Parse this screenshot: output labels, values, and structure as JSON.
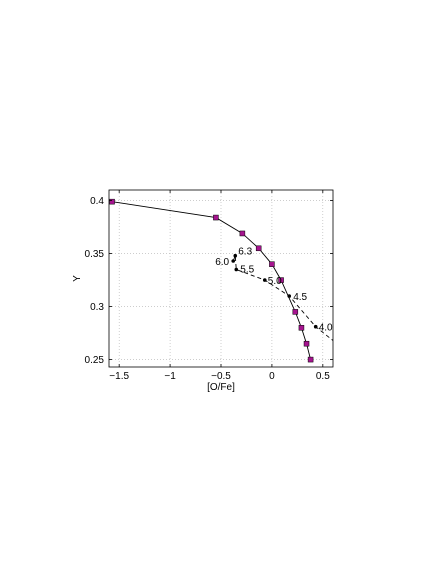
{
  "chart_data": {
    "type": "line",
    "xlabel": "[O/Fe]",
    "ylabel": "Y",
    "xlim": [
      -1.6,
      0.6
    ],
    "ylim": [
      0.243,
      0.41
    ],
    "grid": true,
    "x_ticks": [
      -1.5,
      -1,
      -0.5,
      0,
      0.5
    ],
    "x_tick_labels": [
      "−1.5",
      "−1",
      "−0.5",
      "0",
      "0.5"
    ],
    "y_ticks": [
      0.25,
      0.3,
      0.35,
      0.4
    ],
    "y_tick_labels": [
      "0.25",
      "0.3",
      "0.35",
      "0.4"
    ],
    "series": [
      {
        "style": "solid",
        "marker": "square",
        "marker_color": "#a6148f",
        "x": [
          -1.57,
          -0.55,
          -0.29,
          -0.13,
          0.0,
          0.09,
          0.23,
          0.29,
          0.34,
          0.38
        ],
        "y": [
          0.399,
          0.384,
          0.369,
          0.355,
          0.34,
          0.325,
          0.295,
          0.28,
          0.265,
          0.25
        ]
      },
      {
        "style": "dashed",
        "marker": "dot",
        "marker_color": "#000000",
        "x": [
          -0.38,
          -0.36,
          -0.35,
          -0.07,
          0.17,
          0.43,
          0.6
        ],
        "y": [
          0.343,
          0.348,
          0.335,
          0.325,
          0.31,
          0.281,
          0.268
        ],
        "point_labels": [
          "6.0",
          "6.3",
          "5.5",
          "5.0",
          "4.5",
          "4.0",
          ""
        ]
      }
    ]
  }
}
